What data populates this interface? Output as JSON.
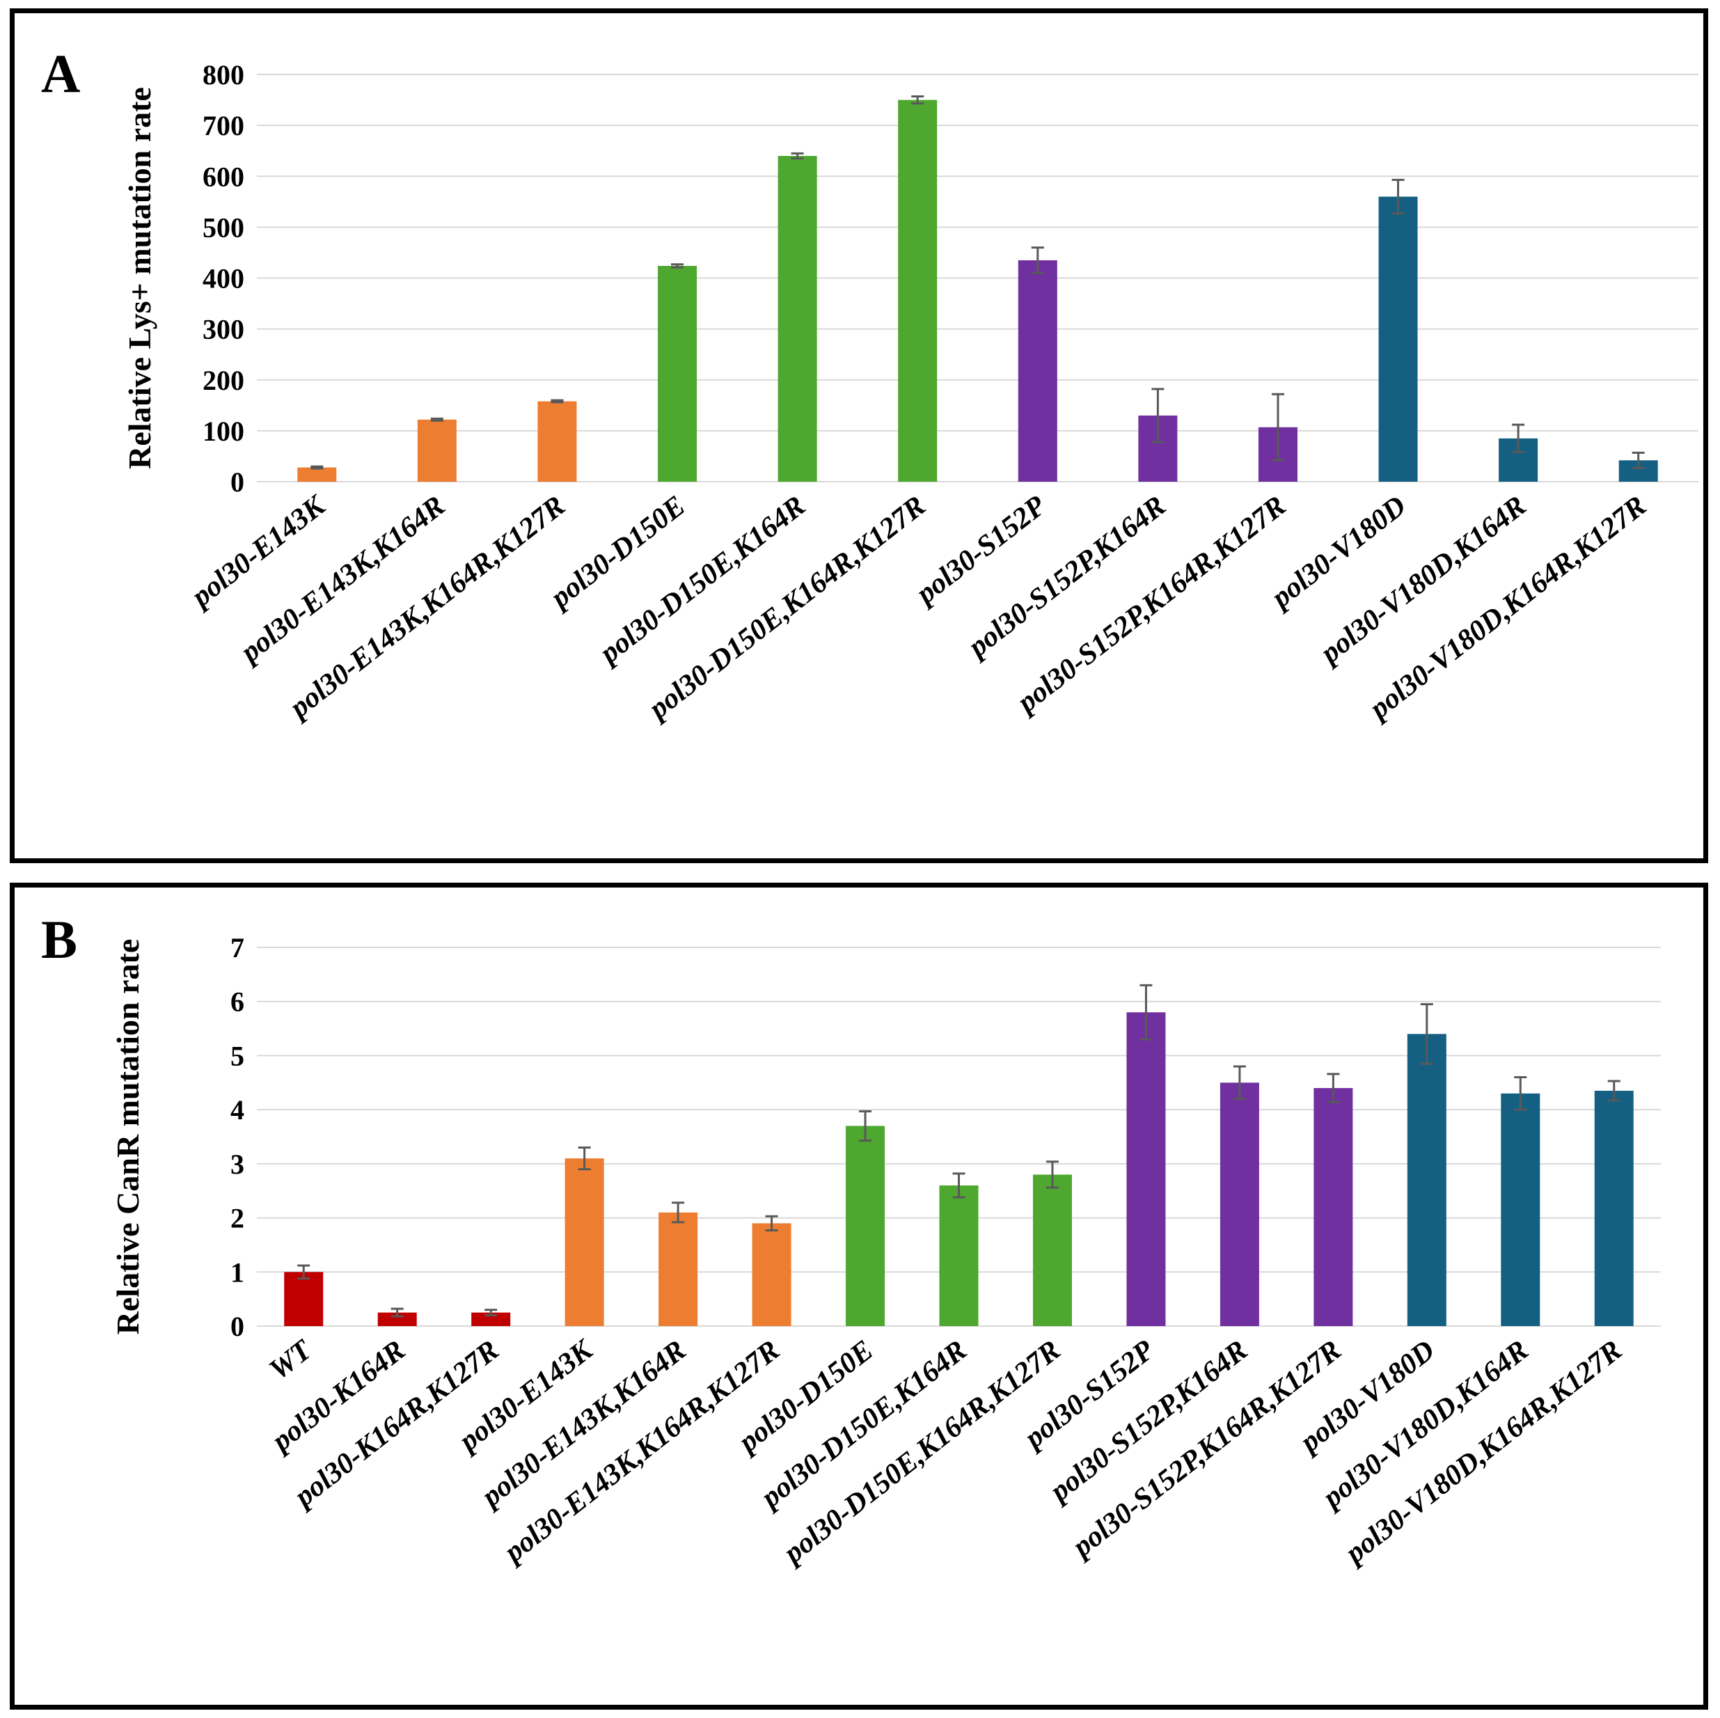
{
  "chart_data": [
    {
      "panel": "A",
      "type": "bar",
      "ylabel": "Relative Lys+ mutation rate",
      "ylim": [
        0,
        800
      ],
      "yticks": [
        0,
        100,
        200,
        300,
        400,
        500,
        600,
        700,
        800
      ],
      "grid": true,
      "categories": [
        "pol30-E143K",
        "pol30-E143K,K164R",
        "pol30-E143K,K164R,K127R",
        "pol30-D150E",
        "pol30-D150E,K164R",
        "pol30-D150E,K164R,K127R",
        "pol30-S152P",
        "pol30-S152P,K164R",
        "pol30-S152P,K164R,K127R",
        "pol30-V180D",
        "pol30-V180D,K164R",
        "pol30-V180D,K164R,K127R"
      ],
      "values": [
        28,
        122,
        158,
        424,
        640,
        750,
        435,
        130,
        107,
        560,
        85,
        42
      ],
      "errors": [
        2,
        2,
        2,
        3,
        5,
        7,
        25,
        52,
        65,
        33,
        27,
        15
      ],
      "colors": [
        "#ED7D31",
        "#ED7D31",
        "#ED7D31",
        "#4EA72E",
        "#4EA72E",
        "#4EA72E",
        "#7030A0",
        "#7030A0",
        "#7030A0",
        "#156082",
        "#156082",
        "#156082"
      ]
    },
    {
      "panel": "B",
      "type": "bar",
      "ylabel": "Relative CanR mutation rate",
      "ylim": [
        0,
        7
      ],
      "yticks": [
        0,
        1,
        2,
        3,
        4,
        5,
        6,
        7
      ],
      "grid": true,
      "categories": [
        "WT",
        "pol30-K164R",
        "pol30-K164R,K127R",
        "pol30-E143K",
        "pol30-E143K,K164R",
        "pol30-E143K,K164R,K127R",
        "pol30-D150E",
        "pol30-D150E,K164R",
        "pol30-D150E,K164R,K127R",
        "pol30-S152P",
        "pol30-S152P,K164R",
        "pol30-S152P,K164R,K127R",
        "pol30-V180D",
        "pol30-V180D,K164R",
        "pol30-V180D,K164R,K127R"
      ],
      "values": [
        1.0,
        0.25,
        0.25,
        3.1,
        2.1,
        1.9,
        3.7,
        2.6,
        2.8,
        5.8,
        4.5,
        4.4,
        5.4,
        4.3,
        4.35
      ],
      "errors": [
        0.12,
        0.07,
        0.05,
        0.2,
        0.18,
        0.13,
        0.27,
        0.22,
        0.24,
        0.5,
        0.3,
        0.26,
        0.55,
        0.3,
        0.18
      ],
      "colors": [
        "#C00000",
        "#C00000",
        "#C00000",
        "#ED7D31",
        "#ED7D31",
        "#ED7D31",
        "#4EA72E",
        "#4EA72E",
        "#4EA72E",
        "#7030A0",
        "#7030A0",
        "#7030A0",
        "#156082",
        "#156082",
        "#156082"
      ]
    }
  ],
  "panels": {
    "a_label": "A",
    "b_label": "B"
  }
}
